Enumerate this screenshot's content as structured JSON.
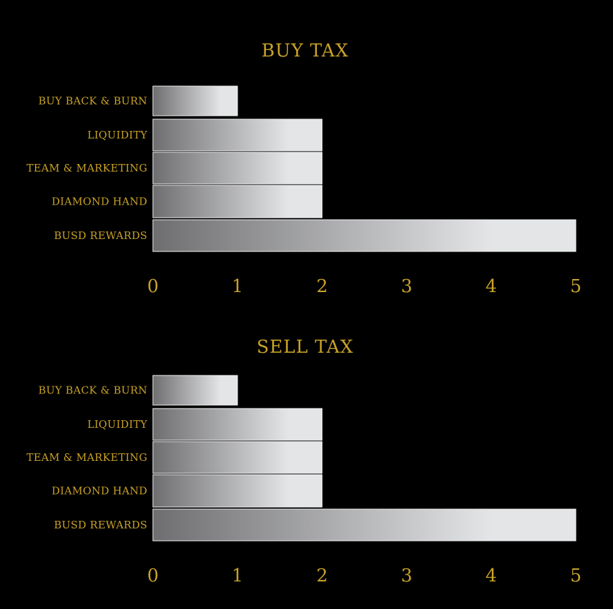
{
  "colors": {
    "background": "#000000",
    "text_gold": "#c9a227",
    "bar_dark": "#6e6e70",
    "bar_light": "#e4e5e7"
  },
  "chart_data": [
    {
      "type": "bar",
      "orientation": "horizontal",
      "title": "BUY TAX",
      "categories": [
        "BUY BACK & BURN",
        "LIQUIDITY",
        "TEAM & MARKETING",
        "DIAMOND HAND",
        "BUSD REWARDS"
      ],
      "values": [
        1,
        2,
        2,
        2,
        5
      ],
      "xlim": [
        0,
        5
      ],
      "xticks": [
        "0",
        "1",
        "2",
        "3",
        "4",
        "5"
      ],
      "grid": false,
      "legend": "none"
    },
    {
      "type": "bar",
      "orientation": "horizontal",
      "title": "SELL TAX",
      "categories": [
        "BUY BACK & BURN",
        "LIQUIDITY",
        "TEAM & MARKETING",
        "DIAMOND HAND",
        "BUSD REWARDS"
      ],
      "values": [
        1,
        2,
        2,
        2,
        5
      ],
      "xlim": [
        0,
        5
      ],
      "xticks": [
        "0",
        "1",
        "2",
        "3",
        "4",
        "5"
      ],
      "grid": false,
      "legend": "none"
    }
  ]
}
